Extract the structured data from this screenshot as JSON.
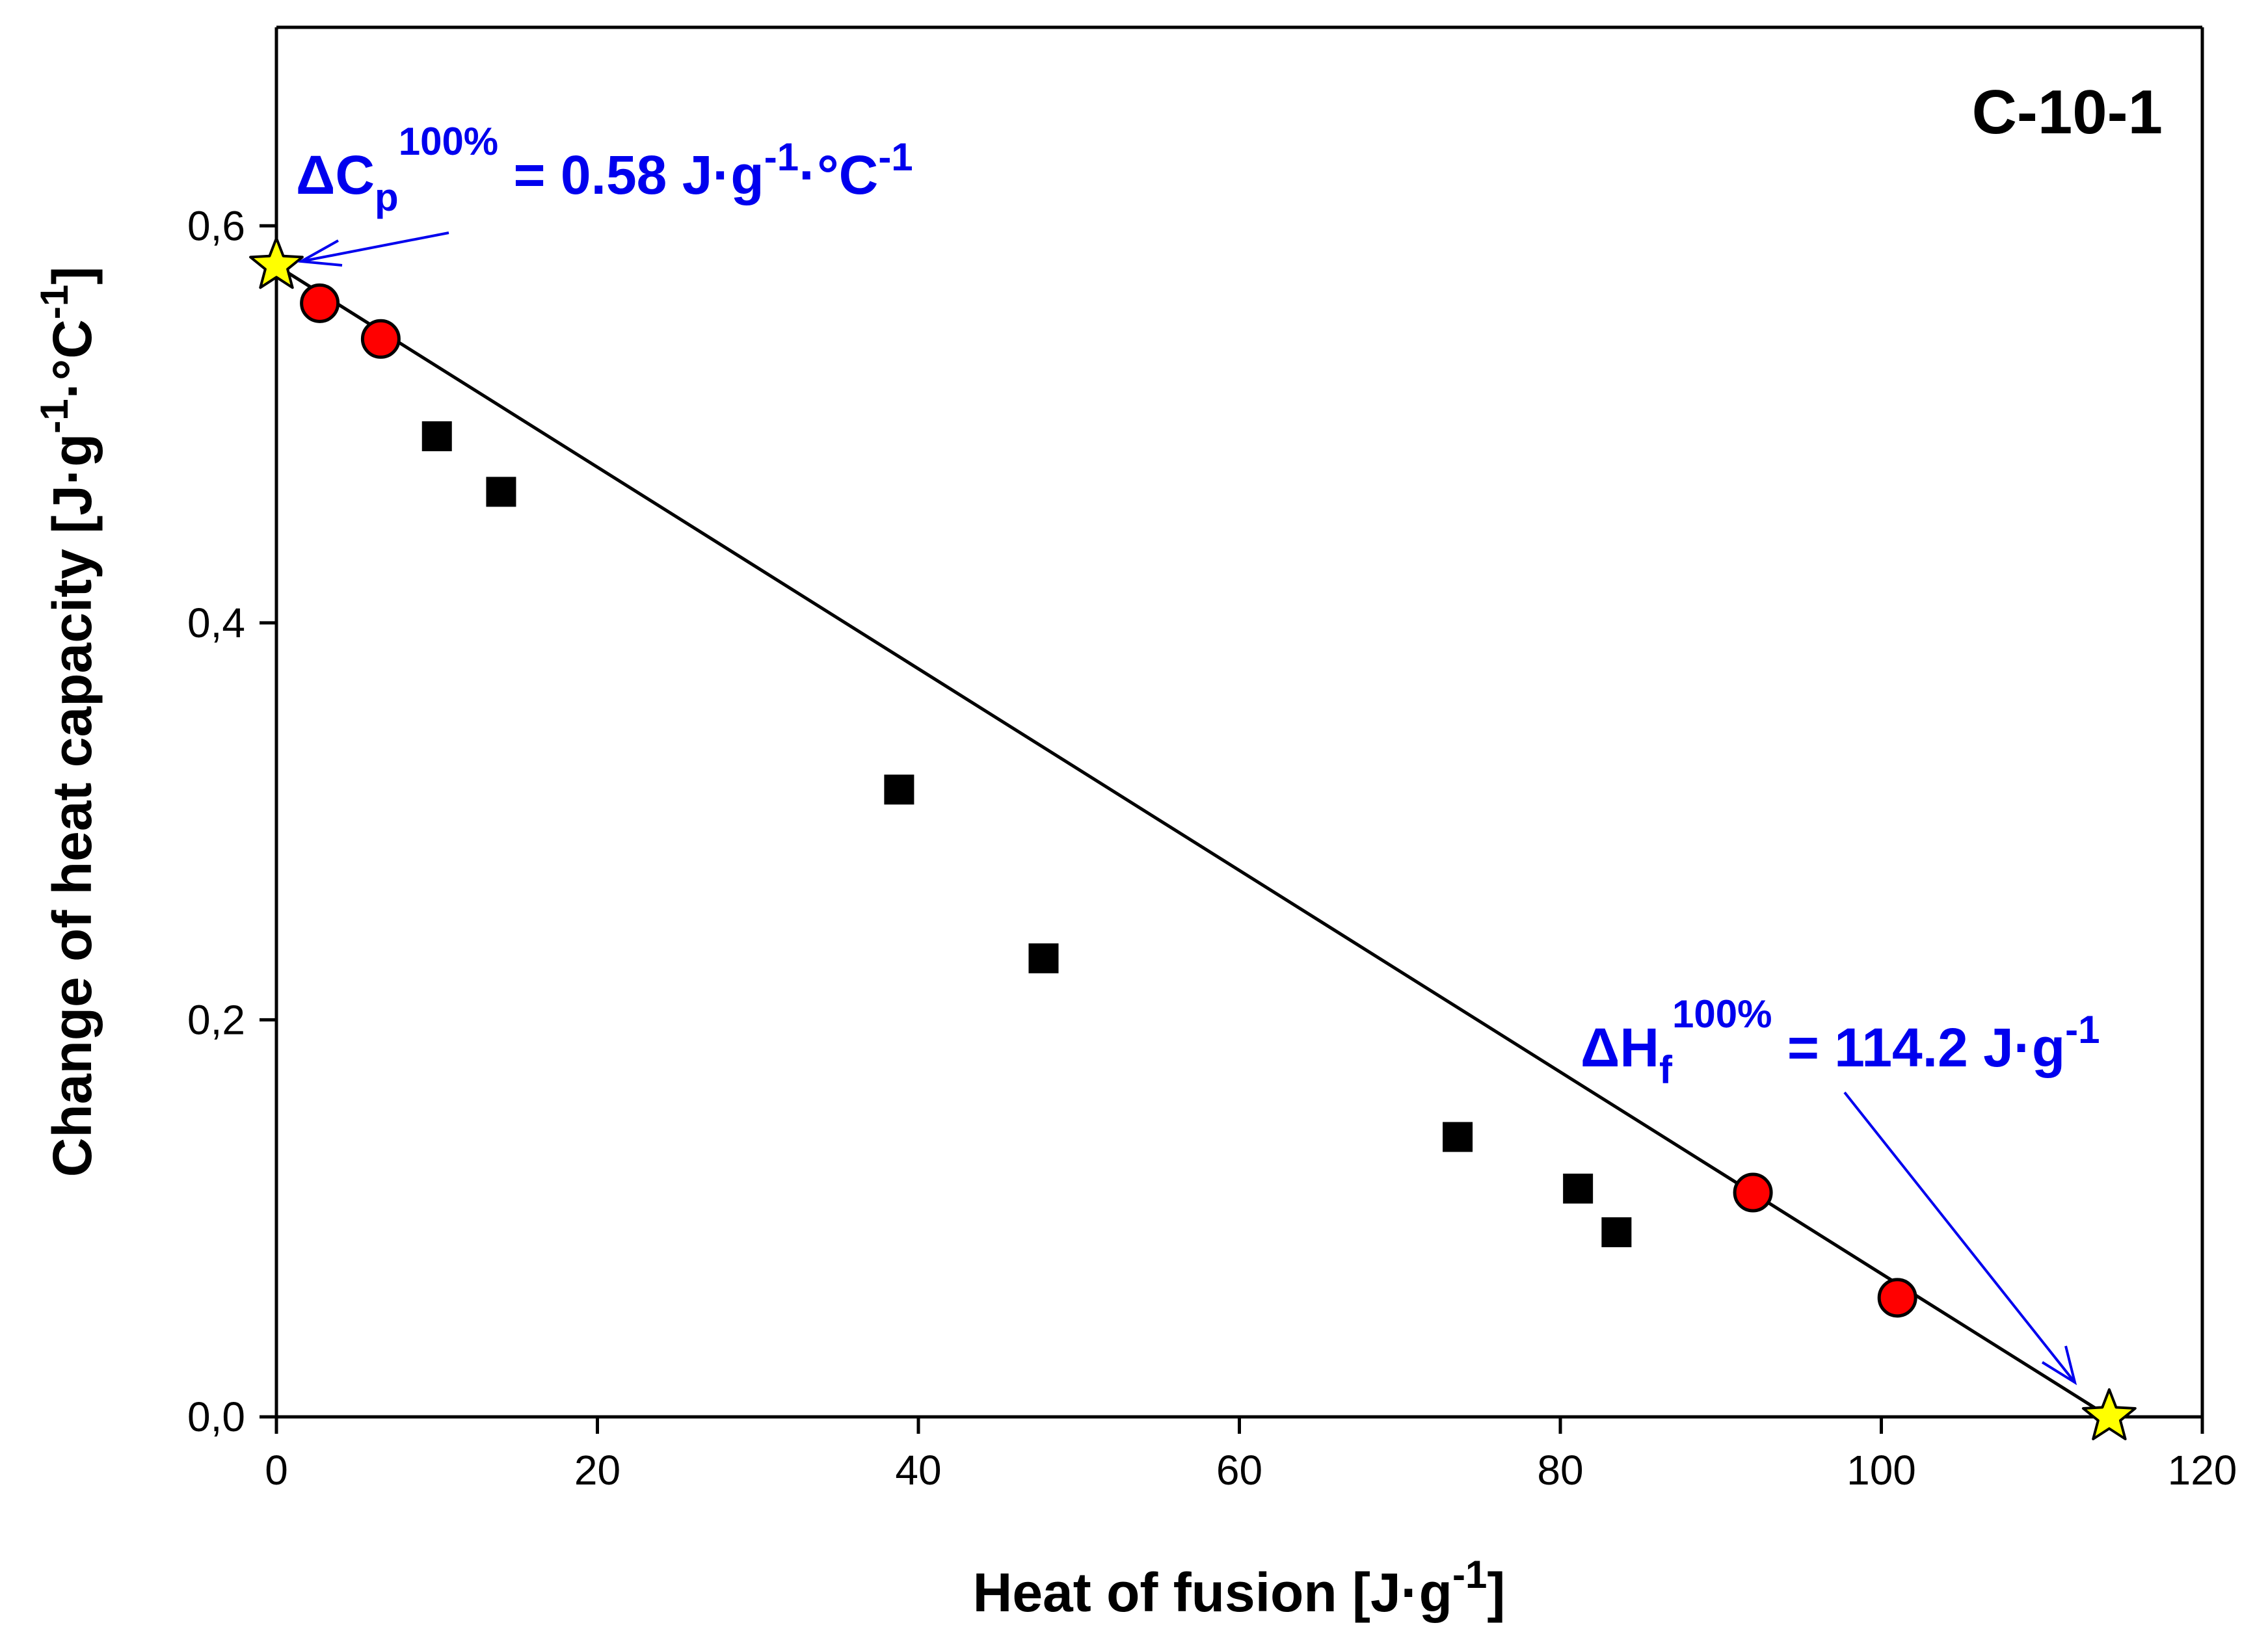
{
  "chart_data": {
    "type": "scatter",
    "panel_label": "C-10-1",
    "xlabel": {
      "main": "Heat of fusion [J·g",
      "sup": "-1",
      "close": "]"
    },
    "ylabel": {
      "main": "Change of heat capacity [J·g",
      "sup1": "-1",
      "mid": "·°C",
      "sup2": "-1",
      "close": "]"
    },
    "xlim": [
      0,
      120
    ],
    "ylim": [
      0,
      0.7
    ],
    "xticks": [
      0,
      20,
      40,
      60,
      80,
      100,
      120
    ],
    "xtick_labels": [
      "0",
      "20",
      "40",
      "60",
      "80",
      "100",
      "120"
    ],
    "yticks": [
      0,
      0.2,
      0.4,
      0.6
    ],
    "ytick_labels": [
      "0,0",
      "0,2",
      "0,4",
      "0,6"
    ],
    "grid": false,
    "series": [
      {
        "name": "squares",
        "marker": "square",
        "color": "#000000",
        "points": [
          [
            10,
            0.494
          ],
          [
            14,
            0.466
          ],
          [
            38.8,
            0.316
          ],
          [
            47.8,
            0.231
          ],
          [
            73.6,
            0.141
          ],
          [
            81.1,
            0.115
          ],
          [
            83.5,
            0.093
          ]
        ]
      },
      {
        "name": "circles",
        "marker": "circle",
        "color": "#ff0000",
        "points": [
          [
            2.7,
            0.561
          ],
          [
            6.5,
            0.543
          ],
          [
            92,
            0.113
          ],
          [
            101,
            0.06
          ]
        ]
      },
      {
        "name": "extrapolated limits",
        "marker": "star",
        "color": "#ffff00",
        "points": [
          [
            0,
            0.58
          ],
          [
            114.2,
            0
          ]
        ]
      }
    ],
    "fit_line": {
      "x": [
        0,
        114.2
      ],
      "y": [
        0.58,
        0
      ]
    },
    "annotations": [
      {
        "base": "ΔC",
        "sub": "p",
        "sup": "100%",
        "rest": " = 0.58 J·g",
        "sup2": "-1",
        "rest2": "·°C",
        "sup3": "-1",
        "target": [
          0,
          0.58
        ]
      },
      {
        "base": "ΔH",
        "sub": "f",
        "sup": "100%",
        "rest": " = 114.2 J·g",
        "sup2": "-1",
        "target": [
          114.2,
          0
        ]
      }
    ],
    "colors": {
      "annotation": "#0000ee",
      "axis": "#000000",
      "line": "#000000"
    }
  }
}
